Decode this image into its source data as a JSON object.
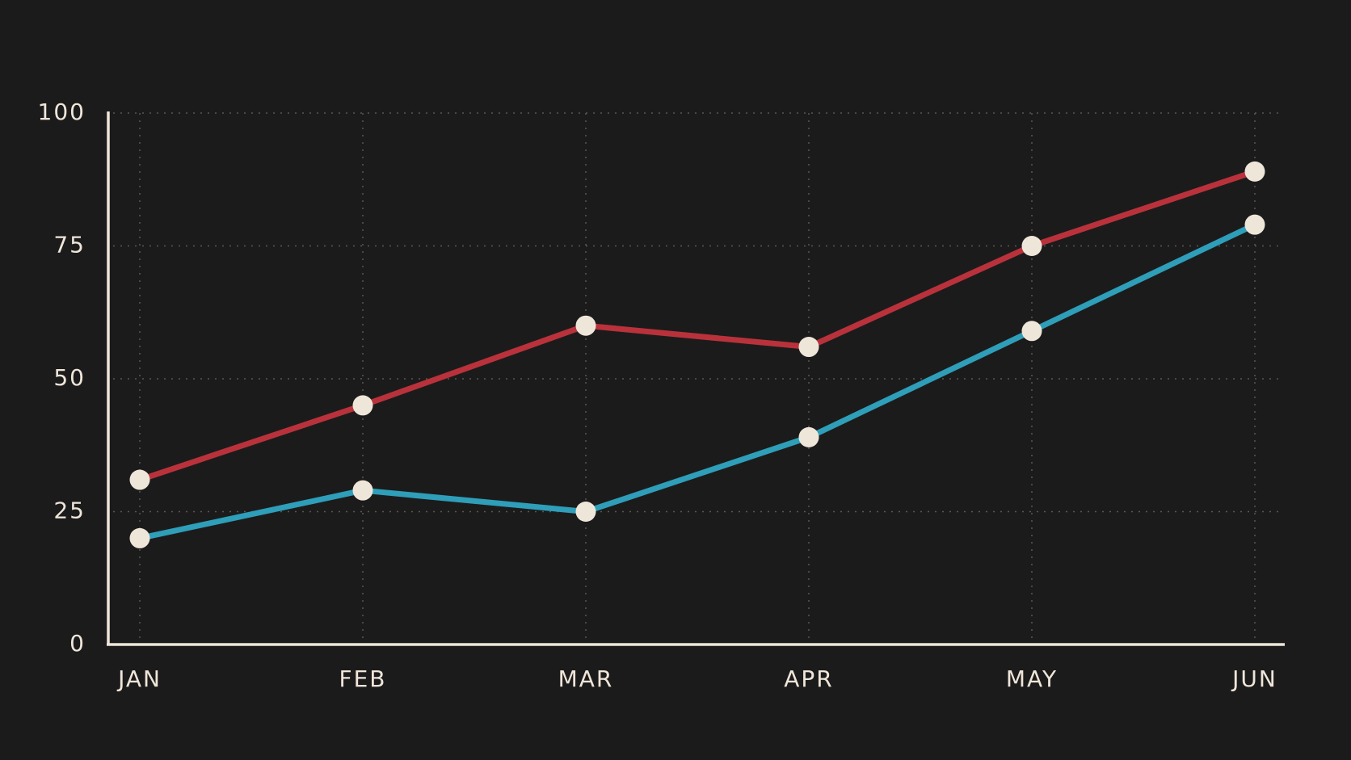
{
  "chart_data": {
    "type": "line",
    "categories": [
      "JAN",
      "FEB",
      "MAR",
      "APR",
      "MAY",
      "JUN"
    ],
    "series": [
      {
        "color": "#b9323b",
        "values": [
          31,
          45,
          60,
          56,
          75,
          89
        ]
      },
      {
        "color": "#2e9eb9",
        "values": [
          20,
          29,
          25,
          39,
          59,
          79
        ]
      }
    ],
    "marker_color": "#efe6da",
    "ylim": [
      0,
      100
    ],
    "yticks": [
      0,
      25,
      50,
      75,
      100
    ],
    "grid": true
  }
}
